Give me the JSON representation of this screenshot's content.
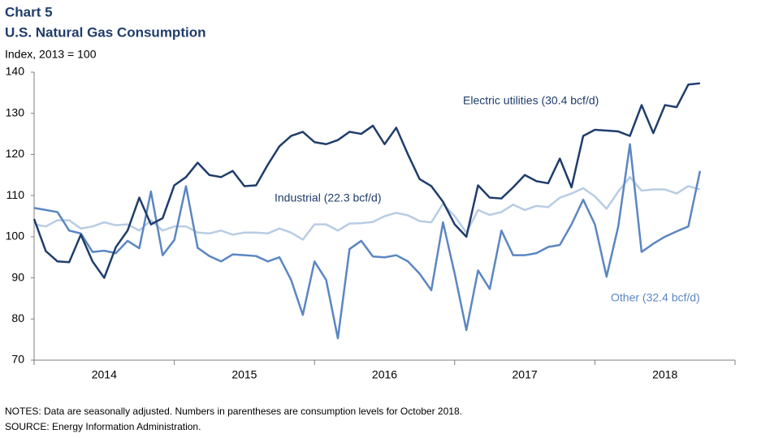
{
  "chart_data": {
    "type": "line",
    "title": "Chart 5",
    "subtitle": "U.S. Natural Gas Consumption",
    "y_label": "Index, 2013 = 100",
    "notes": "NOTES: Data are seasonally adjusted. Numbers in parentheses are consumption levels for October 2018.",
    "source": "SOURCE: Energy Information  Administration.",
    "x_start": 2014,
    "x_step_months": 1,
    "xlim": [
      2014,
      2019
    ],
    "xticks": [
      2014,
      2015,
      2016,
      2017,
      2018,
      2019
    ],
    "year_labels": [
      {
        "value": 2014.5,
        "label": "2014"
      },
      {
        "value": 2015.5,
        "label": "2015"
      },
      {
        "value": 2016.5,
        "label": "2016"
      },
      {
        "value": 2017.5,
        "label": "2017"
      },
      {
        "value": 2018.5,
        "label": "2018"
      }
    ],
    "ylim": [
      70,
      140
    ],
    "yticks": [
      70,
      80,
      90,
      100,
      110,
      120,
      130,
      140
    ],
    "grid": false,
    "series": [
      {
        "name": "Electric utilities (30.4 bcf/d)",
        "color": "#1f3d6b",
        "values": [
          104.3,
          96.5,
          94,
          93.8,
          100.5,
          94,
          90,
          97.5,
          101.5,
          109.5,
          103,
          104.5,
          112.5,
          114.5,
          118,
          115,
          114.5,
          116,
          112.3,
          112.5,
          117.5,
          122,
          124.5,
          125.5,
          123,
          122.5,
          123.5,
          125.5,
          125,
          127,
          122.5,
          126.5,
          120,
          114,
          112.3,
          108.5,
          103,
          100,
          112.5,
          109.5,
          109.3,
          112,
          115,
          113.5,
          113,
          119,
          112,
          124.5,
          126,
          125.8,
          125.6,
          124.5,
          132,
          125.2,
          132,
          131.5,
          137,
          137.3
        ]
      },
      {
        "name": "Industrial  (22.3 bcf/d)",
        "color": "#b8cce4",
        "values": [
          103,
          102.5,
          104,
          104,
          102,
          102.5,
          103.5,
          102.8,
          103,
          101.5,
          104,
          101.5,
          102.5,
          102.5,
          101,
          100.8,
          101.5,
          100.5,
          101,
          101,
          100.8,
          102,
          101,
          99.3,
          103,
          103,
          101.5,
          103.2,
          103.3,
          103.6,
          105,
          105.8,
          105.2,
          103.8,
          103.5,
          108,
          105,
          101,
          106.5,
          105.3,
          106,
          107.8,
          106.5,
          107.5,
          107.2,
          109.5,
          110.5,
          111.8,
          109.8,
          106.8,
          111,
          114.5,
          111.2,
          111.5,
          111.5,
          110.5,
          112.3,
          111.5
        ]
      },
      {
        "name": "Other (32.4 bcf/d)",
        "color": "#5b86c2",
        "values": [
          107,
          106.5,
          106,
          101.5,
          100.8,
          96.3,
          96.6,
          96,
          99,
          97.2,
          111,
          95.5,
          99.2,
          112.3,
          97.3,
          95.3,
          94,
          95.7,
          95.5,
          95.3,
          94,
          95,
          89.5,
          81,
          94,
          89.5,
          75.3,
          97,
          99,
          95.2,
          95,
          95.5,
          94,
          91,
          87,
          103.5,
          91,
          77.3,
          91.8,
          87.3,
          101.5,
          95.5,
          95.5,
          96,
          97.5,
          98,
          103,
          109,
          103,
          90.3,
          102.5,
          122.5,
          96.3,
          98.3,
          100,
          101.3,
          102.5,
          116
        ]
      }
    ]
  }
}
